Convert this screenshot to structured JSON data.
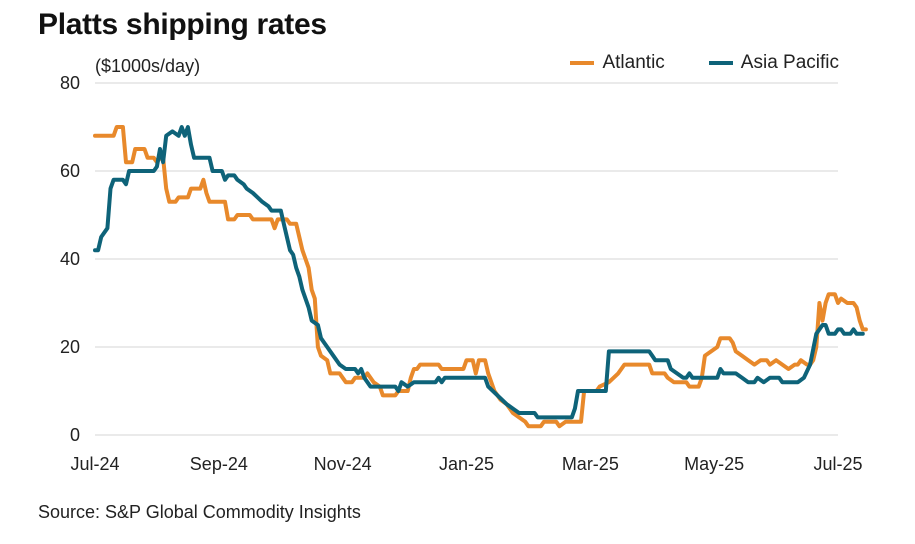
{
  "title": "Platts shipping rates",
  "unit_label": "($1000s/day)",
  "source": "Source: S&P Global Commodity Insights",
  "chart_data": {
    "type": "line",
    "title": "Platts shipping rates",
    "ylabel": "($1000s/day)",
    "ylim": [
      0,
      80
    ],
    "yticks": [
      0,
      20,
      40,
      60,
      80
    ],
    "x_tick_labels": [
      "Jul-24",
      "Sep-24",
      "Nov-24",
      "Jan-25",
      "Mar-25",
      "May-25",
      "Jul-25"
    ],
    "x_range_months": [
      0,
      12
    ],
    "grid": "horizontal",
    "legend": "top-right",
    "series": [
      {
        "name": "Atlantic",
        "color": "#e8892b",
        "points": [
          [
            0.0,
            68
          ],
          [
            0.3,
            68
          ],
          [
            0.35,
            70
          ],
          [
            0.45,
            70
          ],
          [
            0.5,
            62
          ],
          [
            0.6,
            62
          ],
          [
            0.65,
            65
          ],
          [
            0.8,
            65
          ],
          [
            0.85,
            63
          ],
          [
            0.95,
            63
          ],
          [
            1.0,
            62
          ],
          [
            1.05,
            63
          ],
          [
            1.1,
            63
          ],
          [
            1.15,
            56
          ],
          [
            1.2,
            53
          ],
          [
            1.3,
            53
          ],
          [
            1.35,
            54
          ],
          [
            1.5,
            54
          ],
          [
            1.55,
            56
          ],
          [
            1.7,
            56
          ],
          [
            1.75,
            58
          ],
          [
            1.8,
            55
          ],
          [
            1.85,
            53
          ],
          [
            2.1,
            53
          ],
          [
            2.15,
            49
          ],
          [
            2.25,
            49
          ],
          [
            2.3,
            50
          ],
          [
            2.5,
            50
          ],
          [
            2.55,
            49
          ],
          [
            2.85,
            49
          ],
          [
            2.9,
            47
          ],
          [
            2.95,
            49
          ],
          [
            3.1,
            49
          ],
          [
            3.15,
            48
          ],
          [
            3.25,
            48
          ],
          [
            3.3,
            45
          ],
          [
            3.35,
            42
          ],
          [
            3.45,
            38
          ],
          [
            3.5,
            33
          ],
          [
            3.55,
            31
          ],
          [
            3.6,
            20
          ],
          [
            3.65,
            18
          ],
          [
            3.75,
            17
          ],
          [
            3.8,
            14
          ],
          [
            3.95,
            14
          ],
          [
            4.0,
            13
          ],
          [
            4.05,
            12
          ],
          [
            4.15,
            12
          ],
          [
            4.2,
            13
          ],
          [
            4.35,
            13
          ],
          [
            4.4,
            14
          ],
          [
            4.5,
            12
          ],
          [
            4.6,
            11
          ],
          [
            4.65,
            9
          ],
          [
            4.85,
            9
          ],
          [
            4.9,
            10
          ],
          [
            5.05,
            10
          ],
          [
            5.1,
            13
          ],
          [
            5.15,
            15
          ],
          [
            5.2,
            15
          ],
          [
            5.25,
            16
          ],
          [
            5.55,
            16
          ],
          [
            5.6,
            15
          ],
          [
            5.95,
            15
          ],
          [
            6.0,
            17
          ],
          [
            6.1,
            17
          ],
          [
            6.15,
            14
          ],
          [
            6.2,
            17
          ],
          [
            6.3,
            17
          ],
          [
            6.35,
            14
          ],
          [
            6.45,
            10
          ],
          [
            6.55,
            8
          ],
          [
            6.65,
            7
          ],
          [
            6.75,
            5
          ],
          [
            6.85,
            4
          ],
          [
            6.95,
            3
          ],
          [
            7.0,
            2
          ],
          [
            7.2,
            2
          ],
          [
            7.25,
            3
          ],
          [
            7.45,
            3
          ],
          [
            7.5,
            2
          ],
          [
            7.6,
            3
          ],
          [
            7.85,
            3
          ],
          [
            7.9,
            10
          ],
          [
            8.1,
            10
          ],
          [
            8.15,
            11
          ],
          [
            8.3,
            12
          ],
          [
            8.45,
            14
          ],
          [
            8.55,
            16
          ],
          [
            8.95,
            16
          ],
          [
            9.0,
            14
          ],
          [
            9.2,
            14
          ],
          [
            9.25,
            13
          ],
          [
            9.35,
            12
          ],
          [
            9.55,
            12
          ],
          [
            9.6,
            11
          ],
          [
            9.75,
            11
          ],
          [
            9.8,
            13
          ],
          [
            9.85,
            18
          ],
          [
            9.95,
            19
          ],
          [
            10.05,
            20
          ],
          [
            10.1,
            22
          ],
          [
            10.25,
            22
          ],
          [
            10.3,
            21
          ],
          [
            10.35,
            19
          ],
          [
            10.45,
            18
          ],
          [
            10.55,
            17
          ],
          [
            10.65,
            16
          ],
          [
            10.75,
            17
          ],
          [
            10.85,
            17
          ],
          [
            10.9,
            16
          ],
          [
            11.0,
            17
          ],
          [
            11.1,
            16
          ],
          [
            11.2,
            15
          ],
          [
            11.3,
            16
          ],
          [
            11.35,
            16
          ],
          [
            11.4,
            17
          ],
          [
            11.5,
            16
          ],
          [
            11.55,
            16
          ],
          [
            11.6,
            17
          ],
          [
            11.65,
            20
          ],
          [
            11.7,
            30
          ],
          [
            11.75,
            26
          ],
          [
            11.8,
            30
          ],
          [
            11.85,
            32
          ],
          [
            11.95,
            32
          ],
          [
            12.0,
            30
          ],
          [
            12.05,
            31
          ],
          [
            12.15,
            30
          ],
          [
            12.25,
            30
          ],
          [
            12.3,
            29
          ],
          [
            12.35,
            26
          ],
          [
            12.4,
            24
          ],
          [
            12.45,
            24
          ]
        ]
      },
      {
        "name": "Asia Pacific",
        "color": "#0e6379",
        "points": [
          [
            0.0,
            42
          ],
          [
            0.05,
            42
          ],
          [
            0.1,
            45
          ],
          [
            0.2,
            47
          ],
          [
            0.25,
            56
          ],
          [
            0.3,
            58
          ],
          [
            0.45,
            58
          ],
          [
            0.5,
            57
          ],
          [
            0.55,
            60
          ],
          [
            0.75,
            60
          ],
          [
            0.95,
            60
          ],
          [
            1.0,
            61
          ],
          [
            1.05,
            65
          ],
          [
            1.1,
            62
          ],
          [
            1.15,
            68
          ],
          [
            1.25,
            69
          ],
          [
            1.35,
            68
          ],
          [
            1.4,
            70
          ],
          [
            1.45,
            68
          ],
          [
            1.5,
            70
          ],
          [
            1.55,
            66
          ],
          [
            1.6,
            63
          ],
          [
            1.85,
            63
          ],
          [
            1.9,
            60
          ],
          [
            2.05,
            60
          ],
          [
            2.1,
            58
          ],
          [
            2.15,
            59
          ],
          [
            2.25,
            59
          ],
          [
            2.3,
            58
          ],
          [
            2.4,
            57
          ],
          [
            2.45,
            56
          ],
          [
            2.55,
            55
          ],
          [
            2.7,
            53
          ],
          [
            2.8,
            52
          ],
          [
            2.85,
            51
          ],
          [
            3.0,
            51
          ],
          [
            3.05,
            48
          ],
          [
            3.1,
            45
          ],
          [
            3.15,
            42
          ],
          [
            3.2,
            41
          ],
          [
            3.25,
            38
          ],
          [
            3.3,
            36
          ],
          [
            3.35,
            33
          ],
          [
            3.45,
            29
          ],
          [
            3.5,
            26
          ],
          [
            3.6,
            25
          ],
          [
            3.65,
            22
          ],
          [
            3.75,
            20
          ],
          [
            3.85,
            18
          ],
          [
            3.95,
            16
          ],
          [
            4.05,
            15
          ],
          [
            4.2,
            15
          ],
          [
            4.25,
            14
          ],
          [
            4.3,
            15
          ],
          [
            4.35,
            13
          ],
          [
            4.45,
            11
          ],
          [
            4.85,
            11
          ],
          [
            4.9,
            10
          ],
          [
            4.95,
            12
          ],
          [
            5.05,
            11
          ],
          [
            5.15,
            12
          ],
          [
            5.5,
            12
          ],
          [
            5.55,
            13
          ],
          [
            5.6,
            12
          ],
          [
            5.65,
            13
          ],
          [
            6.3,
            13
          ],
          [
            6.35,
            11
          ],
          [
            6.5,
            9
          ],
          [
            6.65,
            7
          ],
          [
            6.75,
            6
          ],
          [
            6.85,
            5
          ],
          [
            7.1,
            5
          ],
          [
            7.15,
            4
          ],
          [
            7.7,
            4
          ],
          [
            7.75,
            6
          ],
          [
            7.8,
            10
          ],
          [
            8.0,
            10
          ],
          [
            8.25,
            10
          ],
          [
            8.3,
            19
          ],
          [
            8.95,
            19
          ],
          [
            9.0,
            18
          ],
          [
            9.05,
            17
          ],
          [
            9.25,
            17
          ],
          [
            9.3,
            15
          ],
          [
            9.4,
            14
          ],
          [
            9.5,
            13
          ],
          [
            9.55,
            13
          ],
          [
            9.6,
            14
          ],
          [
            9.65,
            13
          ],
          [
            10.0,
            13
          ],
          [
            10.05,
            13
          ],
          [
            10.1,
            15
          ],
          [
            10.15,
            14
          ],
          [
            10.35,
            14
          ],
          [
            10.45,
            13
          ],
          [
            10.55,
            12
          ],
          [
            10.65,
            12
          ],
          [
            10.7,
            13
          ],
          [
            10.8,
            12
          ],
          [
            10.9,
            13
          ],
          [
            11.05,
            13
          ],
          [
            11.1,
            12
          ],
          [
            11.35,
            12
          ],
          [
            11.45,
            13
          ],
          [
            11.55,
            16
          ],
          [
            11.65,
            23
          ],
          [
            11.75,
            25
          ],
          [
            11.8,
            25
          ],
          [
            11.85,
            23
          ],
          [
            11.95,
            23
          ],
          [
            12.0,
            24
          ],
          [
            12.05,
            24
          ],
          [
            12.1,
            23
          ],
          [
            12.2,
            23
          ],
          [
            12.25,
            24
          ],
          [
            12.3,
            23
          ],
          [
            12.4,
            23
          ]
        ]
      }
    ]
  }
}
